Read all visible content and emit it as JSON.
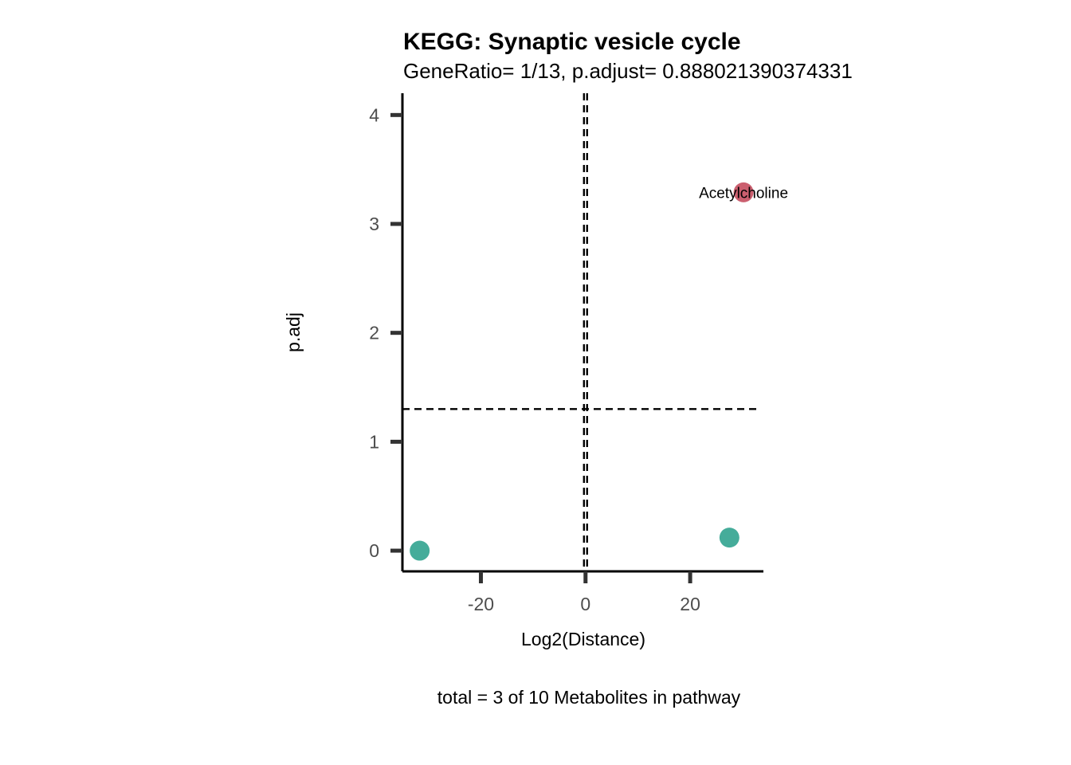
{
  "chart_data": {
    "type": "scatter",
    "title": "KEGG: Synaptic vesicle cycle",
    "subtitle": "GeneRatio= 1/13, p.adjust= 0.888021390374331",
    "xlabel": "Log2(Distance)",
    "ylabel": "p.adj",
    "caption": "total = 3 of 10 Metabolites in pathway",
    "xlim": [
      -35,
      34
    ],
    "ylim": [
      -0.19,
      4.2
    ],
    "x_ticks": [
      -20,
      0,
      20
    ],
    "x_tick_labels": [
      "-20",
      "0",
      "20"
    ],
    "y_ticks": [
      0,
      1,
      2,
      3,
      4
    ],
    "y_tick_labels": [
      "0",
      "1",
      "2",
      "3",
      "4"
    ],
    "grid": false,
    "legend": "none",
    "reference_lines": {
      "vertical_x": [
        -0.3,
        0.3
      ],
      "horizontal_y": 1.3
    },
    "points": [
      {
        "x": -31.7,
        "y": 0.0,
        "label": "",
        "color": "#45ac9a"
      },
      {
        "x": 27.5,
        "y": 0.12,
        "label": "",
        "color": "#45ac9a"
      },
      {
        "x": 30.2,
        "y": 3.29,
        "label": "Acetylcholine",
        "color": "#cb5f6f"
      }
    ]
  }
}
